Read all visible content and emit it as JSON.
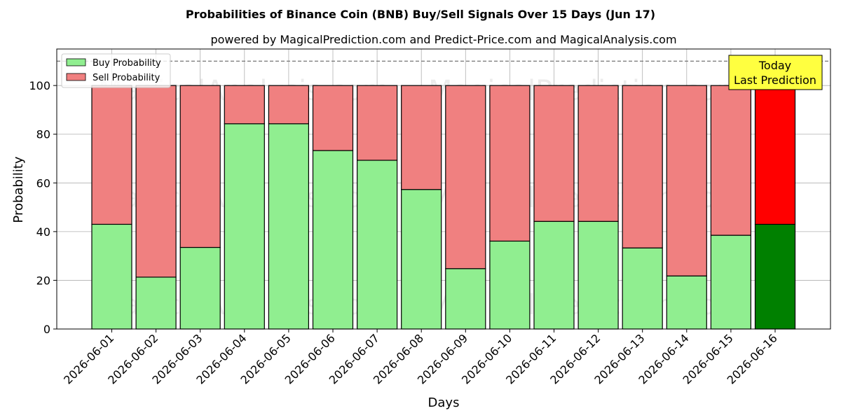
{
  "chart_data": {
    "type": "bar",
    "stacked": true,
    "title": "Probabilities of Binance Coin (BNB) Buy/Sell Signals Over 15 Days (Jun 17)",
    "subtitle": "powered by MagicalPrediction.com and Predict-Price.com and MagicalAnalysis.com",
    "xlabel": "Days",
    "ylabel": "Probability",
    "ylim": [
      0,
      115
    ],
    "yticks": [
      0,
      20,
      40,
      60,
      80,
      100
    ],
    "grid": true,
    "legend_position": "top-left",
    "reference_line": 110,
    "categories": [
      "2026-06-01",
      "2026-06-02",
      "2026-06-03",
      "2026-06-04",
      "2026-06-05",
      "2026-06-06",
      "2026-06-07",
      "2026-06-08",
      "2026-06-09",
      "2026-06-10",
      "2026-06-11",
      "2026-06-12",
      "2026-06-13",
      "2026-06-14",
      "2026-06-15",
      "2026-06-16"
    ],
    "series": [
      {
        "name": "Buy Probability",
        "color": "#90ee90",
        "highlight_color": "#008000",
        "values": [
          43,
          21.3,
          33.5,
          84.3,
          84.3,
          73.3,
          69.3,
          57.3,
          24.8,
          36.1,
          44.2,
          44.2,
          33.3,
          21.8,
          38.5,
          43
        ]
      },
      {
        "name": "Sell Probability",
        "color": "#f08080",
        "highlight_color": "#ff0000",
        "values": [
          57,
          78.7,
          66.5,
          15.7,
          15.7,
          26.7,
          30.7,
          42.7,
          75.2,
          63.9,
          55.8,
          55.8,
          66.7,
          78.2,
          61.5,
          57
        ]
      }
    ],
    "highlight_index": 15,
    "annotation": {
      "line1": "Today",
      "line2": "Last Prediction",
      "bg": "#ffff40"
    },
    "watermarks": [
      "MagicalAnalysis.com",
      "MagicalPrediction.com"
    ]
  }
}
